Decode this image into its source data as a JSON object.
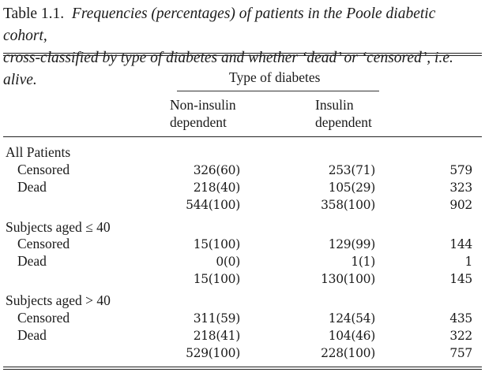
{
  "caption": {
    "label": "Table 1.1.",
    "line1": "Frequencies (percentages) of patients in the Poole diabetic cohort,",
    "line2": "cross-classified by type of diabetes and whether ‘dead’ or ‘censored’, i.e. alive."
  },
  "header": {
    "group": "Type of diabetes",
    "col1_line1": "Non-insulin",
    "col1_line2": "dependent",
    "col2_line1": "Insulin",
    "col2_line2": "dependent"
  },
  "sections": [
    {
      "title": "All Patients",
      "rows": [
        {
          "label": "Censored",
          "c1": "326(60)",
          "c2": "253(71)",
          "total": "579"
        },
        {
          "label": "Dead",
          "c1": "218(40)",
          "c2": "105(29)",
          "total": "323"
        },
        {
          "label": "",
          "c1": "544(100)",
          "c2": "358(100)",
          "total": "902"
        }
      ]
    },
    {
      "title": "Subjects aged ≤ 40",
      "rows": [
        {
          "label": "Censored",
          "c1": "15(100)",
          "c2": "129(99)",
          "total": "144"
        },
        {
          "label": "Dead",
          "c1": "0(0)",
          "c2": "1(1)",
          "total": "1"
        },
        {
          "label": "",
          "c1": "15(100)",
          "c2": "130(100)",
          "total": "145"
        }
      ]
    },
    {
      "title": "Subjects aged > 40",
      "rows": [
        {
          "label": "Censored",
          "c1": "311(59)",
          "c2": "124(54)",
          "total": "435"
        },
        {
          "label": "Dead",
          "c1": "218(41)",
          "c2": "104(46)",
          "total": "322"
        },
        {
          "label": "",
          "c1": "529(100)",
          "c2": "228(100)",
          "total": "757"
        }
      ]
    }
  ]
}
